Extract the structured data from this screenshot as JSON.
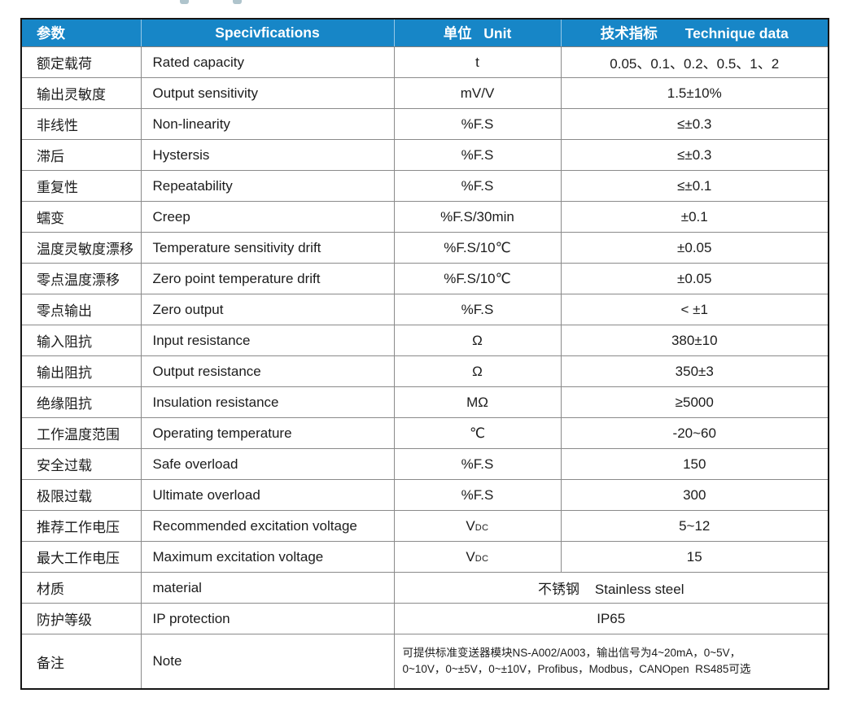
{
  "colors": {
    "header_bg": "#1786c7",
    "header_text": "#ffffff",
    "outer_border": "#161616",
    "grid_border": "#8a8a8a",
    "body_text": "#1c1c1c"
  },
  "table": {
    "headers": [
      {
        "label": "参数"
      },
      {
        "label": "Specivfications"
      },
      {
        "label": "单位   Unit"
      },
      {
        "label": "技术指标       Technique data"
      }
    ],
    "rows": [
      {
        "cn": "额定载荷",
        "en": "Rated capacity",
        "unit": "t",
        "value": "0.05、0.1、0.2、0.5、1、2"
      },
      {
        "cn": "输出灵敏度",
        "en": "Output sensitivity",
        "unit": "mV/V",
        "value": "1.5±10%"
      },
      {
        "cn": "非线性",
        "en": "Non-linearity",
        "unit": "%F.S",
        "value": "≤±0.3"
      },
      {
        "cn": "滞后",
        "en": "Hystersis",
        "unit": "%F.S",
        "value": "≤±0.3"
      },
      {
        "cn": "重复性",
        "en": "Repeatability",
        "unit": "%F.S",
        "value": "≤±0.1"
      },
      {
        "cn": "蠕变",
        "en": "Creep",
        "unit": "%F.S/30min",
        "value": "±0.1"
      },
      {
        "cn": "温度灵敏度漂移",
        "en": "Temperature sensitivity drift",
        "unit": "%F.S/10℃",
        "value": "±0.05"
      },
      {
        "cn": "零点温度漂移",
        "en": "Zero point temperature drift",
        "unit": "%F.S/10℃",
        "value": "±0.05"
      },
      {
        "cn": "零点输出",
        "en": "Zero output",
        "unit": "%F.S",
        "value": "< ±1"
      },
      {
        "cn": "输入阻抗",
        "en": "Input resistance",
        "unit": "Ω",
        "value": "380±10"
      },
      {
        "cn": "输出阻抗",
        "en": "Output resistance",
        "unit": "Ω",
        "value": "350±3"
      },
      {
        "cn": "绝缘阻抗",
        "en": "Insulation resistance",
        "unit": "MΩ",
        "value": "≥5000"
      },
      {
        "cn": "工作温度范围",
        "en": "Operating temperature",
        "unit": "℃",
        "value": "-20~60"
      },
      {
        "cn": "安全过载",
        "en": "Safe overload",
        "unit": "%F.S",
        "value": "150"
      },
      {
        "cn": "极限过载",
        "en": "Ultimate overload",
        "unit": "%F.S",
        "value": "300"
      },
      {
        "cn": "推荐工作电压",
        "en": "Recommended excitation voltage",
        "unit": "V",
        "unit_sub": "DC",
        "value": "5~12"
      },
      {
        "cn": "最大工作电压",
        "en": "Maximum excitation voltage",
        "unit": "V",
        "unit_sub": "DC",
        "value": "15"
      },
      {
        "cn": "材质",
        "en": "material",
        "merged": true,
        "value": "不锈钢    Stainless steel"
      },
      {
        "cn": "防护等级",
        "en": "IP protection",
        "merged": true,
        "value": "IP65"
      },
      {
        "cn": "备注",
        "en": "Note",
        "merged": true,
        "note": true,
        "value_lines": [
          "可提供标准变送器模块NS-A002/A003，输出信号为4~20mA，0~5V，",
          "0~10V，0~±5V，0~±10V，Profibus，Modbus，CANOpen  RS485可选"
        ]
      }
    ]
  }
}
